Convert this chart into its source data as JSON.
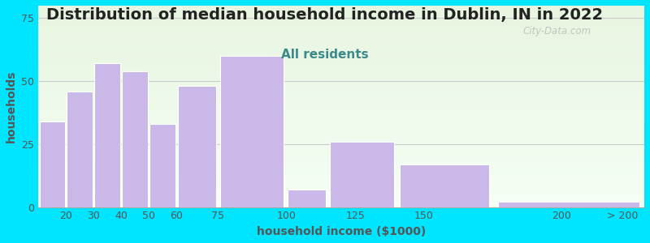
{
  "title": "Distribution of median household income in Dublin, IN in 2022",
  "subtitle": "All residents",
  "xlabel": "household income ($1000)",
  "ylabel": "households",
  "bar_values": [
    34,
    46,
    57,
    54,
    33,
    48,
    60,
    7,
    26,
    17,
    2
  ],
  "bin_edges": [
    10,
    20,
    30,
    40,
    50,
    60,
    75,
    100,
    115,
    140,
    175,
    230
  ],
  "bar_color": "#c9b8e8",
  "bar_edgecolor": "#ffffff",
  "ylim": [
    0,
    80
  ],
  "yticks": [
    0,
    25,
    50,
    75
  ],
  "xlim": [
    10,
    230
  ],
  "xtick_positions": [
    20,
    30,
    40,
    50,
    60,
    75,
    100,
    125,
    150,
    200,
    222
  ],
  "xtick_labels": [
    "20",
    "30",
    "40",
    "50",
    "60",
    "75",
    "100",
    "125",
    "150",
    "200",
    "> 200"
  ],
  "background_color": "#00e5ff",
  "plot_bg_top": "#e8f5e0",
  "plot_bg_bottom": "#f5fff5",
  "title_fontsize": 14,
  "subtitle_fontsize": 11,
  "subtitle_color": "#3a8a8a",
  "axis_label_color": "#555555",
  "axis_label_fontsize": 10,
  "tick_color": "#555555",
  "tick_fontsize": 9,
  "watermark_text": "City-Data.com",
  "watermark_color": "#bbbbbb",
  "grid_color": "#cccccc",
  "ylabel_color": "#555555"
}
